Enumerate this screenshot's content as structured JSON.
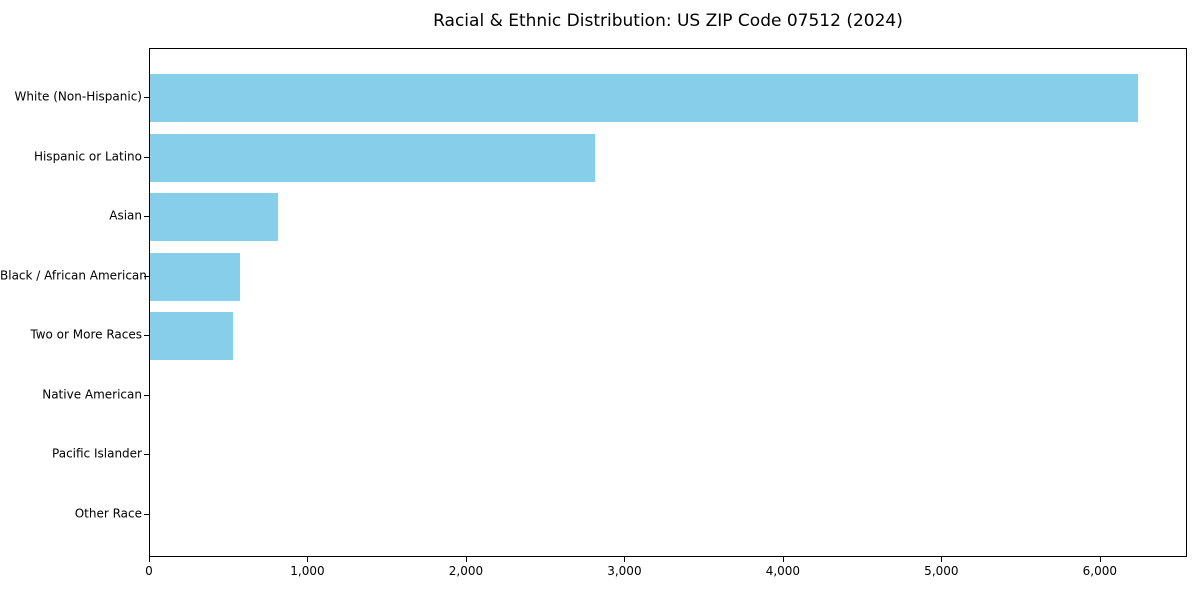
{
  "chart_data": {
    "type": "bar",
    "orientation": "horizontal",
    "title": "Racial & Ethnic Distribution: US ZIP Code 07512 (2024)",
    "categories": [
      "White (Non-Hispanic)",
      "Hispanic or Latino",
      "Asian",
      "Black / African American",
      "Two or More Races",
      "Native American",
      "Pacific Islander",
      "Other Race"
    ],
    "values": [
      6233,
      2807,
      808,
      568,
      524,
      0,
      0,
      0
    ],
    "xlabel": "",
    "ylabel": "",
    "xlim": [
      0,
      6550
    ],
    "x_ticks": [
      0,
      1000,
      2000,
      3000,
      4000,
      5000,
      6000
    ],
    "x_tick_labels": [
      "0",
      "1,000",
      "2,000",
      "3,000",
      "4,000",
      "5,000",
      "6,000"
    ],
    "bar_color": "#87CEEB",
    "text_color": "#000000",
    "grid": false,
    "legend": null
  }
}
